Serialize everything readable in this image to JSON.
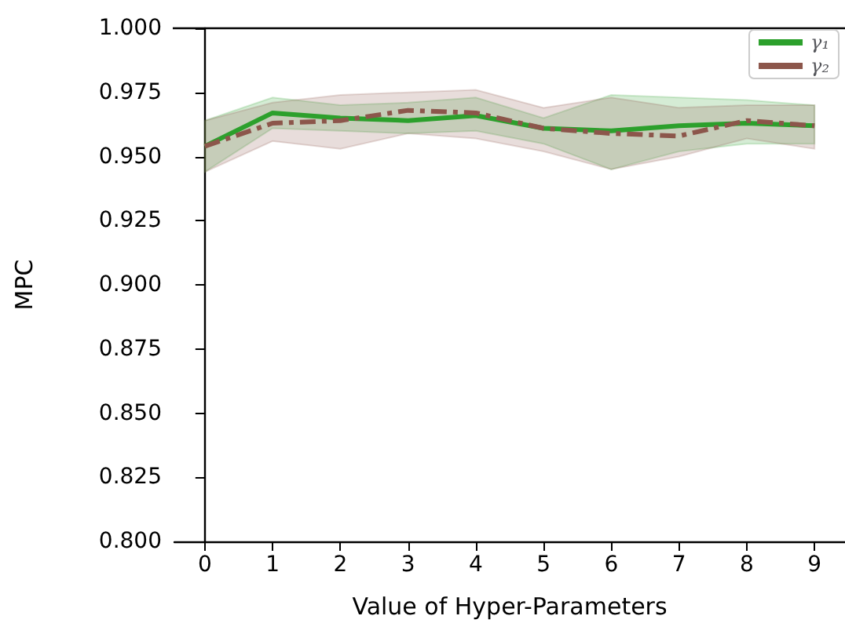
{
  "chart_data": {
    "type": "line",
    "xlabel": "Value of Hyper-Parameters",
    "ylabel": "MPC",
    "x": [
      0,
      1,
      2,
      3,
      4,
      5,
      6,
      7,
      8,
      9
    ],
    "xlim": [
      -0.45,
      9.45
    ],
    "xticks": [
      0,
      1,
      2,
      3,
      4,
      5,
      6,
      7,
      8,
      9
    ],
    "ylim": [
      0.8,
      1.0
    ],
    "yticks": [
      {
        "value": 0.8,
        "label": "0.800"
      },
      {
        "value": 0.825,
        "label": "0.825"
      },
      {
        "value": 0.85,
        "label": "0.850"
      },
      {
        "value": 0.875,
        "label": "0.875"
      },
      {
        "value": 0.9,
        "label": "0.900"
      },
      {
        "value": 0.925,
        "label": "0.925"
      },
      {
        "value": 0.95,
        "label": "0.950"
      },
      {
        "value": 0.975,
        "label": "0.975"
      },
      {
        "value": 1.0,
        "label": "1.000"
      }
    ],
    "series": [
      {
        "name": "γ₁",
        "color": "#2ca02c",
        "line_style": "solid",
        "values": [
          0.954,
          0.967,
          0.965,
          0.964,
          0.966,
          0.961,
          0.96,
          0.962,
          0.963,
          0.962
        ],
        "lower": [
          0.944,
          0.961,
          0.96,
          0.959,
          0.96,
          0.955,
          0.945,
          0.952,
          0.955,
          0.955
        ],
        "upper": [
          0.964,
          0.973,
          0.97,
          0.971,
          0.973,
          0.965,
          0.974,
          0.973,
          0.972,
          0.97
        ]
      },
      {
        "name": "γ₂",
        "color": "#8c564b",
        "line_style": "dashed",
        "values": [
          0.954,
          0.963,
          0.964,
          0.968,
          0.967,
          0.961,
          0.959,
          0.958,
          0.964,
          0.962
        ],
        "lower": [
          0.944,
          0.956,
          0.953,
          0.959,
          0.957,
          0.952,
          0.945,
          0.95,
          0.957,
          0.953
        ],
        "upper": [
          0.964,
          0.971,
          0.974,
          0.975,
          0.976,
          0.969,
          0.973,
          0.969,
          0.97,
          0.97
        ]
      }
    ],
    "legend": "top right",
    "grid": false,
    "marker": "none"
  }
}
